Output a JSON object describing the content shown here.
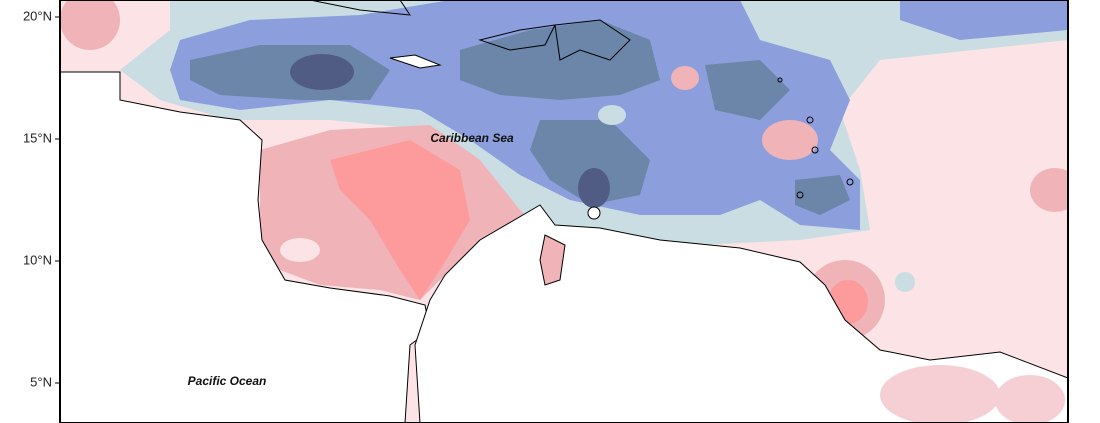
{
  "map": {
    "lat_labels": [
      "20°N",
      "15°N",
      "10°N",
      "5°N"
    ],
    "places": [
      "Caribbean Sea",
      "Pacific Ocean"
    ]
  }
}
